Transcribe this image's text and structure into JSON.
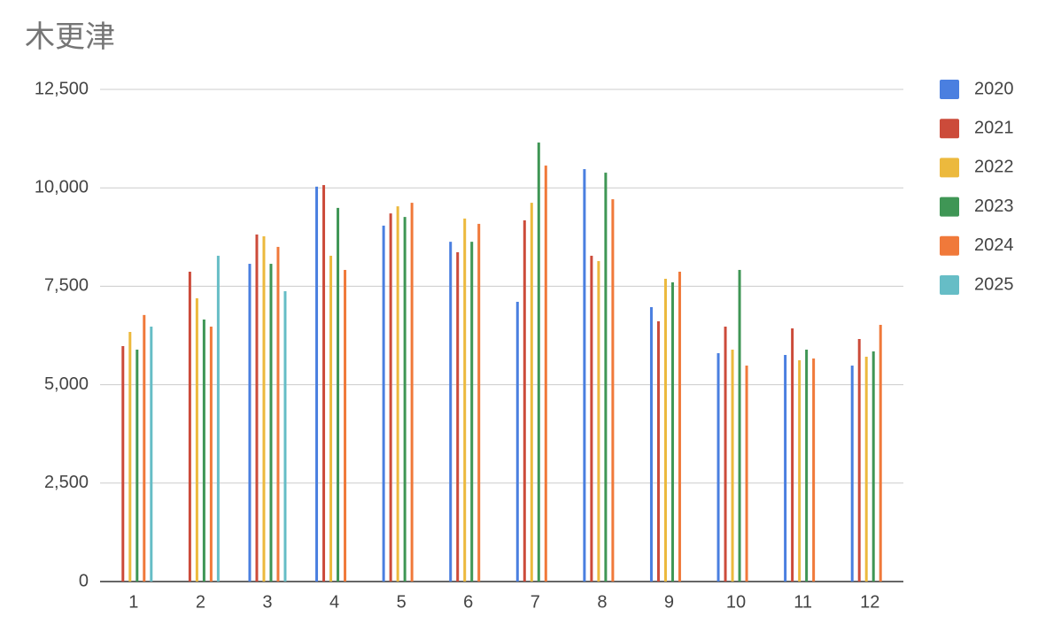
{
  "chart_data": {
    "type": "bar",
    "title": "木更津",
    "categories": [
      "1",
      "2",
      "3",
      "4",
      "5",
      "6",
      "7",
      "8",
      "9",
      "10",
      "11",
      "12"
    ],
    "series": [
      {
        "name": "2020",
        "color": "#4a7fe0",
        "values": [
          null,
          null,
          8070,
          10030,
          9040,
          8630,
          7105,
          10475,
          6970,
          5800,
          5755,
          5485
        ]
      },
      {
        "name": "2021",
        "color": "#cc4b3a",
        "values": [
          5980,
          7870,
          8815,
          10070,
          9350,
          8365,
          9175,
          8275,
          6610,
          6475,
          6430,
          6160
        ]
      },
      {
        "name": "2022",
        "color": "#ecb93d",
        "values": [
          6340,
          7195,
          8770,
          8275,
          9530,
          9220,
          9620,
          8140,
          7690,
          5890,
          5620,
          5710
        ]
      },
      {
        "name": "2023",
        "color": "#3f9655",
        "values": [
          5890,
          6655,
          8070,
          9490,
          9260,
          8630,
          11150,
          10385,
          7600,
          7915,
          5890,
          5845
        ]
      },
      {
        "name": "2024",
        "color": "#f0793a",
        "values": [
          6770,
          6475,
          8500,
          7915,
          9620,
          9085,
          10565,
          9710,
          7870,
          5485,
          5665,
          6520
        ]
      },
      {
        "name": "2025",
        "color": "#66bdc6",
        "values": [
          6475,
          8275,
          7375,
          null,
          null,
          null,
          null,
          null,
          null,
          null,
          null,
          null
        ]
      }
    ],
    "ylim": [
      0,
      12500
    ],
    "yticks": [
      0,
      {
        "value": 2500,
        "label": "2,500"
      },
      {
        "value": 5000,
        "label": "5,000"
      },
      {
        "value": 7500,
        "label": "7,500"
      },
      {
        "value": 10000,
        "label": "10,000"
      },
      {
        "value": 12500,
        "label": "12,500"
      }
    ],
    "grid": true,
    "legend": "right"
  }
}
